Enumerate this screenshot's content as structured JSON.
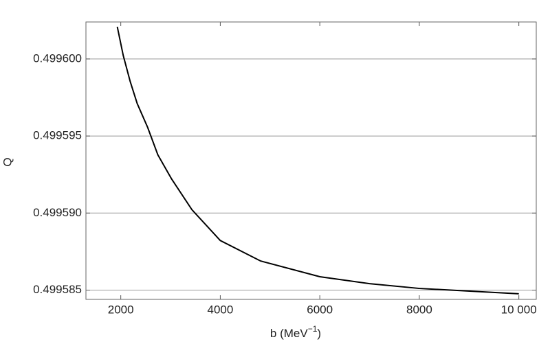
{
  "chart_data": {
    "type": "line",
    "xlabel": {
      "text": "b (MeV",
      "sup": "−1",
      "tail": ")"
    },
    "ylabel": "Q",
    "x": [
      1930,
      2050,
      2190,
      2330,
      2540,
      2745,
      3020,
      3430,
      4000,
      4810,
      6000,
      7000,
      8000,
      10000
    ],
    "series": [
      {
        "name": "Q",
        "color": "#000000",
        "values": [
          0.49960209,
          0.49960022,
          0.49959853,
          0.49959711,
          0.49959556,
          0.49959378,
          0.49959222,
          0.49959022,
          0.49958822,
          0.49958689,
          0.49958587,
          0.49958542,
          0.49958511,
          0.49958476
        ]
      }
    ],
    "xlim": [
      1300,
      10350
    ],
    "ylim": [
      0.4995844,
      0.4996024
    ],
    "xticks": [
      2000,
      4000,
      6000,
      8000,
      {
        "value": 10000,
        "label": "10 000"
      }
    ],
    "yticks": [
      {
        "value": 0.4996,
        "label": "0.499600"
      },
      {
        "value": 0.499595,
        "label": "0.499595"
      },
      {
        "value": 0.49959,
        "label": "0.499590"
      },
      {
        "value": 0.499585,
        "label": "0.499585"
      }
    ],
    "grid": "y"
  }
}
